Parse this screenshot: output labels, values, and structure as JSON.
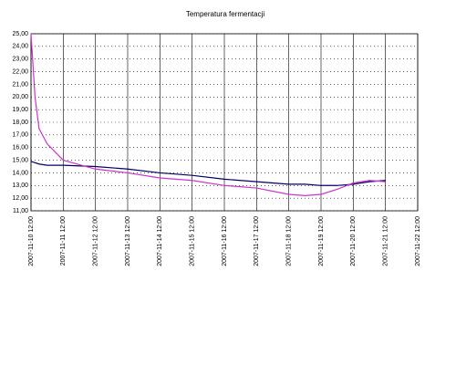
{
  "chart_data": {
    "type": "line",
    "title": "Temperatura fermentacji",
    "x": [
      "2007-11-10 12:00",
      "2007-11-10 15:00",
      "2007-11-10 18:00",
      "2007-11-11 00:00",
      "2007-11-11 12:00",
      "2007-11-12 12:00",
      "2007-11-13 12:00",
      "2007-11-14 12:00",
      "2007-11-15 12:00",
      "2007-11-16 12:00",
      "2007-11-17 12:00",
      "2007-11-18 12:00",
      "2007-11-19 00:00",
      "2007-11-19 12:00",
      "2007-11-20 00:00",
      "2007-11-20 12:00",
      "2007-11-21 00:00",
      "2007-11-21 12:00"
    ],
    "series": [
      {
        "color": "#000066",
        "values": [
          14.9,
          14.8,
          14.7,
          14.6,
          14.6,
          14.5,
          14.3,
          14.0,
          13.8,
          13.5,
          13.3,
          13.1,
          13.1,
          13.0,
          13.0,
          13.1,
          13.3,
          13.4
        ]
      },
      {
        "color": "#cc33cc",
        "values": [
          25,
          20,
          17.5,
          16.3,
          15,
          14.3,
          14,
          13.6,
          13.4,
          13,
          12.8,
          12.3,
          12.2,
          12.3,
          12.7,
          13.2,
          13.4,
          13.3
        ]
      }
    ],
    "xlim": [
      "2007-11-10 12:00",
      "2007-11-22 12:00"
    ],
    "xticks": [
      "2007-11-10 12:00",
      "2007-11-11 12:00",
      "2007-11-12 12:00",
      "2007-11-13 12:00",
      "2007-11-14 12:00",
      "2007-11-15 12:00",
      "2007-11-16 12:00",
      "2007-11-17 12:00",
      "2007-11-18 12:00",
      "2007-11-19 12:00",
      "2007-11-20 12:00",
      "2007-11-21 12:00",
      "2007-11-22 12:00"
    ],
    "ylim": [
      11,
      25
    ],
    "yticks": [
      {
        "value": 11,
        "label": "11,00"
      },
      {
        "value": 12,
        "label": "12,00"
      },
      {
        "value": 13,
        "label": "13,00"
      },
      {
        "value": 14,
        "label": "14,00"
      },
      {
        "value": 15,
        "label": "15,00"
      },
      {
        "value": 16,
        "label": "16,00"
      },
      {
        "value": 17,
        "label": "17,00"
      },
      {
        "value": 18,
        "label": "18,00"
      },
      {
        "value": 19,
        "label": "19,00"
      },
      {
        "value": 20,
        "label": "20,00"
      },
      {
        "value": 21,
        "label": "21,00"
      },
      {
        "value": 22,
        "label": "22,00"
      },
      {
        "value": 23,
        "label": "23,00"
      },
      {
        "value": 24,
        "label": "24,00"
      },
      {
        "value": 25,
        "label": "25,00"
      }
    ],
    "grid": true
  }
}
